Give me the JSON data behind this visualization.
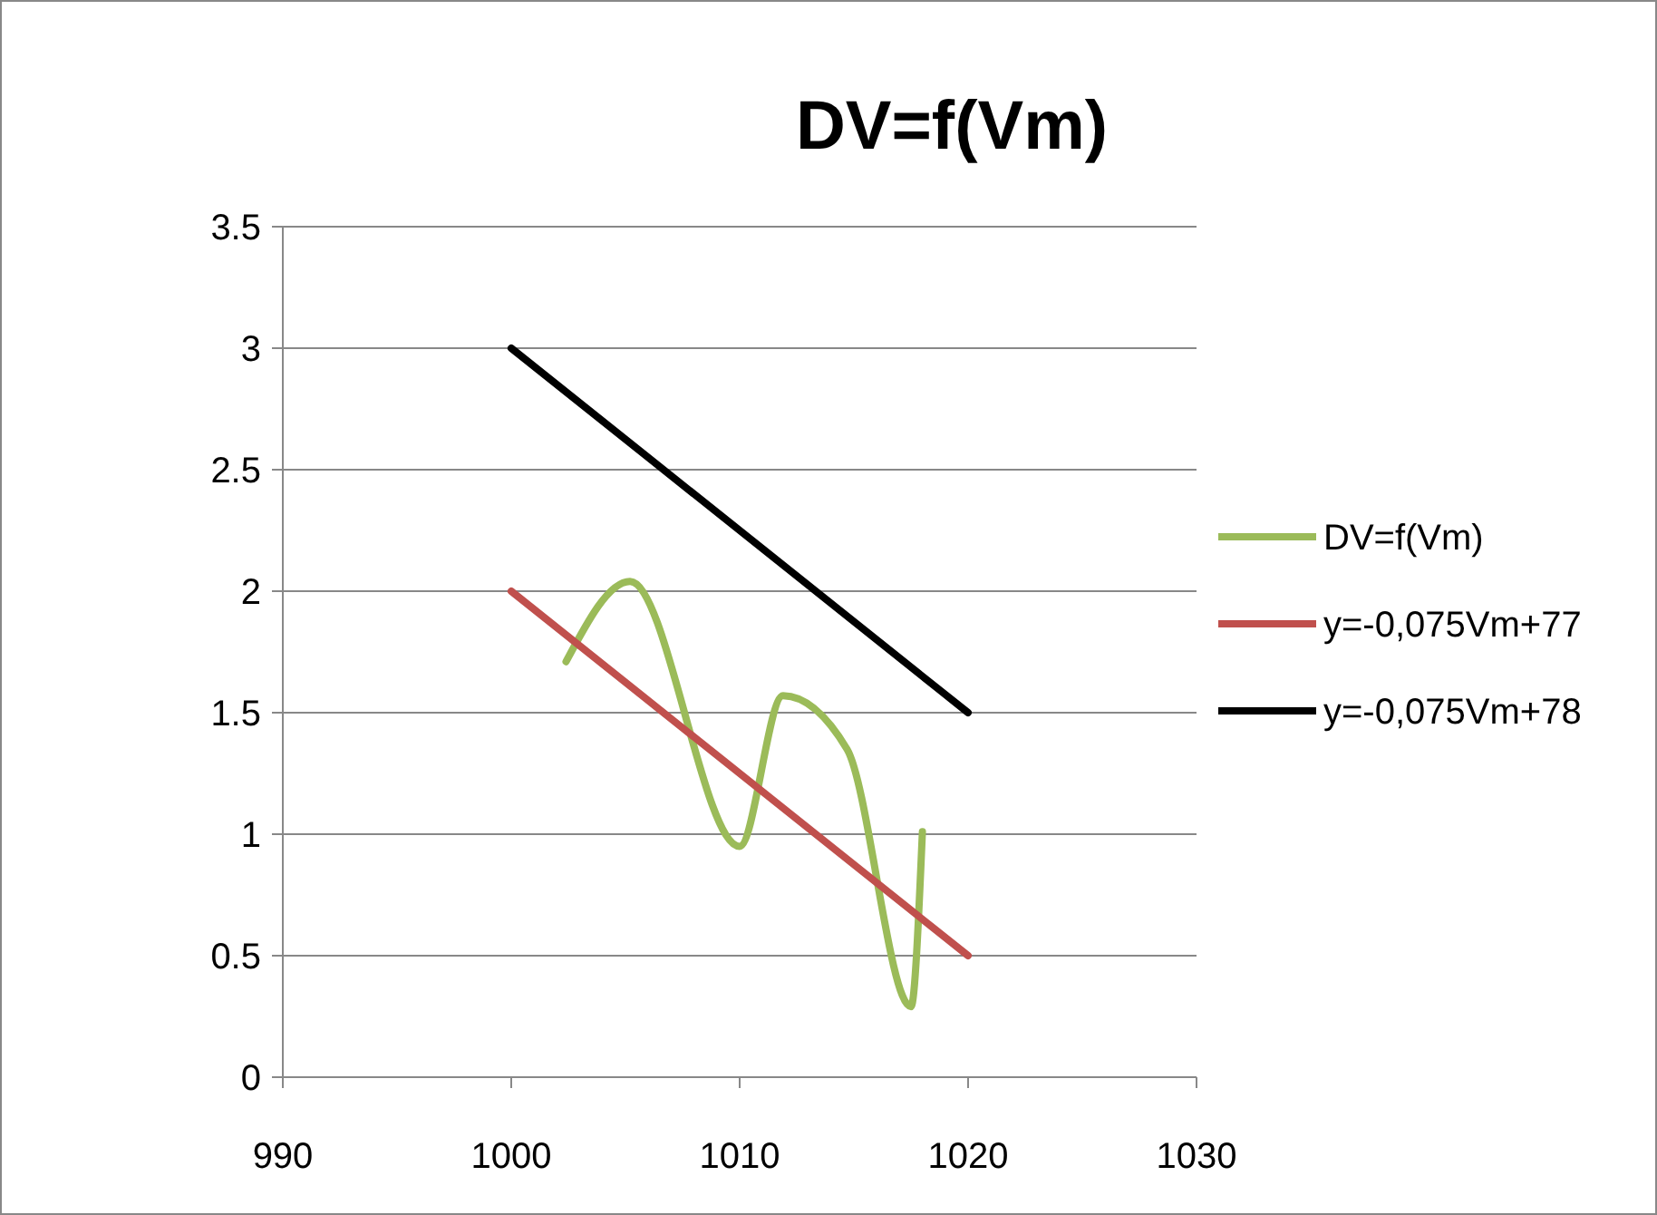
{
  "chart_data": {
    "type": "line",
    "title": "DV=f(Vm)",
    "xlim": [
      990,
      1030
    ],
    "xticks": [
      990,
      1000,
      1010,
      1020,
      1030
    ],
    "ylim": [
      0,
      3.5
    ],
    "yticks": [
      0,
      0.5,
      1,
      1.5,
      2,
      2.5,
      3,
      3.5
    ],
    "grid": "y",
    "legend": "right",
    "marker": "none",
    "line_style": "solid",
    "series": [
      {
        "name": "DV=f(Vm)",
        "color": "#9bbb59",
        "x": [
          1002.4,
          1005.2,
          1010.0,
          1011.9,
          1014.7,
          1017.5,
          1018.0
        ],
        "values": [
          1.71,
          2.04,
          0.95,
          1.57,
          1.35,
          0.29,
          1.01
        ]
      },
      {
        "name": "y=-0,075Vm+77",
        "color": "#c0504d",
        "x": [
          1000,
          1020
        ],
        "values": [
          2,
          0.5
        ]
      },
      {
        "name": "y=-0,075Vm+78",
        "color": "#000000",
        "x": [
          1000,
          1020
        ],
        "values": [
          3,
          1.5
        ]
      }
    ]
  }
}
